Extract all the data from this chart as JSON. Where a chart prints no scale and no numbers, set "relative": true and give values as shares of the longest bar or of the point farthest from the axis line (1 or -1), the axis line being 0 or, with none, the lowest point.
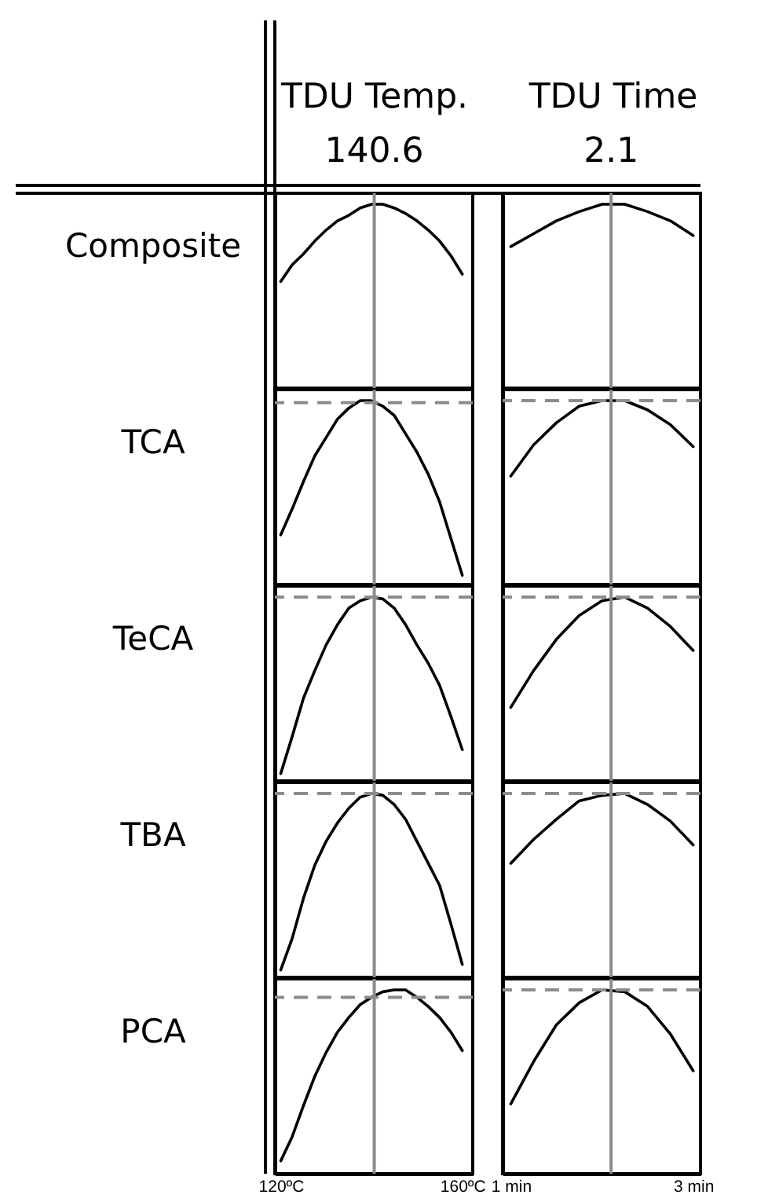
{
  "chart_data": [
    {
      "type": "line",
      "xlabel": "TDU Temp.",
      "ylabel": "Composite",
      "x": [
        120,
        122.5,
        125,
        127.5,
        130,
        132.5,
        135,
        137.5,
        140,
        142.5,
        145,
        147.5,
        150,
        152.5,
        155,
        157.5,
        160
      ],
      "values": [
        0.58,
        0.67,
        0.73,
        0.8,
        0.86,
        0.91,
        0.94,
        0.98,
        1,
        1,
        0.98,
        0.95,
        0.91,
        0.86,
        0.8,
        0.72,
        0.62
      ],
      "color": "#000000",
      "relative": true,
      "xlim": [
        118.7,
        162.3
      ],
      "tick_labels": false,
      "ref_lines": [
        {
          "axis": "x",
          "value": 140.6,
          "label": "140.6",
          "color": "#8c8c8c"
        }
      ]
    },
    {
      "type": "line",
      "xlabel": "TDU Time",
      "x": [
        1,
        1.25,
        1.5,
        1.75,
        2,
        2.25,
        2.5,
        2.75,
        3
      ],
      "values": [
        0.77,
        0.84,
        0.91,
        0.96,
        1,
        1,
        0.96,
        0.91,
        0.83
      ],
      "color": "#000000",
      "relative": true,
      "xlim": [
        0.91,
        3.08
      ],
      "tick_labels": false,
      "ref_lines": [
        {
          "axis": "x",
          "value": 2.1,
          "label": "2.1",
          "color": "#8c8c8c"
        }
      ]
    },
    {
      "type": "line",
      "ylabel": "TCA",
      "x": [
        120,
        122.5,
        125,
        127.5,
        130,
        132.5,
        135,
        137.5,
        140,
        142.5,
        145,
        147.5,
        150,
        152.5,
        155,
        157.5,
        160
      ],
      "values": [
        0.27,
        0.41,
        0.56,
        0.7,
        0.8,
        0.9,
        0.96,
        1,
        1,
        0.97,
        0.92,
        0.82,
        0.72,
        0.6,
        0.45,
        0.25,
        0.05
      ],
      "color": "#000000",
      "relative": true,
      "xlim": [
        118.7,
        162.3
      ],
      "tick_labels": false,
      "ref_lines": [
        {
          "axis": "x",
          "value": 140.6,
          "color": "#8c8c8c"
        },
        {
          "axis": "y",
          "value": 0.99,
          "line_style": "dashed",
          "color": "#8c8c8c"
        }
      ]
    },
    {
      "type": "line",
      "x": [
        1,
        1.25,
        1.5,
        1.75,
        2,
        2.25,
        2.5,
        2.75,
        3
      ],
      "values": [
        0.59,
        0.76,
        0.88,
        0.97,
        1,
        1,
        0.95,
        0.87,
        0.75
      ],
      "color": "#000000",
      "relative": true,
      "xlim": [
        0.91,
        3.08
      ],
      "tick_labels": false,
      "ref_lines": [
        {
          "axis": "x",
          "value": 2.1,
          "color": "#8c8c8c"
        },
        {
          "axis": "y",
          "value": 1,
          "line_style": "dashed",
          "color": "#8c8c8c"
        }
      ]
    },
    {
      "type": "line",
      "ylabel": "TeCA",
      "x": [
        120,
        122.5,
        125,
        127.5,
        130,
        132.5,
        135,
        137.5,
        140,
        142.5,
        145,
        147.5,
        150,
        152.5,
        155,
        157.5,
        160
      ],
      "values": [
        0.04,
        0.24,
        0.45,
        0.6,
        0.74,
        0.85,
        0.94,
        0.98,
        1,
        0.99,
        0.94,
        0.85,
        0.74,
        0.64,
        0.52,
        0.35,
        0.17
      ],
      "color": "#000000",
      "relative": true,
      "xlim": [
        118.7,
        162.3
      ],
      "tick_labels": false,
      "ref_lines": [
        {
          "axis": "x",
          "value": 140.6,
          "color": "#8c8c8c"
        },
        {
          "axis": "y",
          "value": 1,
          "line_style": "dashed",
          "color": "#8c8c8c"
        }
      ]
    },
    {
      "type": "line",
      "x": [
        1,
        1.25,
        1.5,
        1.75,
        2,
        2.25,
        2.5,
        2.75,
        3
      ],
      "values": [
        0.4,
        0.6,
        0.77,
        0.9,
        0.98,
        1,
        0.94,
        0.84,
        0.71
      ],
      "color": "#000000",
      "relative": true,
      "xlim": [
        0.91,
        3.08
      ],
      "tick_labels": false,
      "ref_lines": [
        {
          "axis": "x",
          "value": 2.1,
          "color": "#8c8c8c"
        },
        {
          "axis": "y",
          "value": 1,
          "line_style": "dashed",
          "color": "#8c8c8c"
        }
      ]
    },
    {
      "type": "line",
      "ylabel": "TBA",
      "x": [
        120,
        122.5,
        125,
        127.5,
        130,
        132.5,
        135,
        137.5,
        140,
        142.5,
        145,
        147.5,
        150,
        152.5,
        155,
        157.5,
        160
      ],
      "values": [
        0.04,
        0.21,
        0.43,
        0.61,
        0.74,
        0.84,
        0.92,
        0.98,
        1,
        0.99,
        0.94,
        0.86,
        0.74,
        0.62,
        0.5,
        0.29,
        0.07
      ],
      "color": "#000000",
      "relative": true,
      "xlim": [
        118.7,
        162.3
      ],
      "tick_labels": false,
      "ref_lines": [
        {
          "axis": "x",
          "value": 140.6,
          "color": "#8c8c8c"
        },
        {
          "axis": "y",
          "value": 1,
          "line_style": "dashed",
          "color": "#8c8c8c"
        }
      ]
    },
    {
      "type": "line",
      "x": [
        1,
        1.25,
        1.5,
        1.75,
        2,
        2.25,
        2.5,
        2.75,
        3
      ],
      "values": [
        0.62,
        0.75,
        0.86,
        0.96,
        0.99,
        1,
        0.94,
        0.85,
        0.72
      ],
      "color": "#000000",
      "relative": true,
      "xlim": [
        0.91,
        3.08
      ],
      "tick_labels": false,
      "ref_lines": [
        {
          "axis": "x",
          "value": 2.1,
          "color": "#8c8c8c"
        },
        {
          "axis": "y",
          "value": 1,
          "line_style": "dashed",
          "color": "#8c8c8c"
        }
      ]
    },
    {
      "type": "line",
      "ylabel": "PCA",
      "x": [
        120,
        122.5,
        125,
        127.5,
        130,
        132.5,
        135,
        137.5,
        140,
        142.5,
        145,
        147.5,
        150,
        152.5,
        155,
        157.5,
        160
      ],
      "values": [
        0.07,
        0.2,
        0.37,
        0.53,
        0.66,
        0.77,
        0.85,
        0.92,
        0.96,
        0.99,
        1,
        1,
        0.96,
        0.91,
        0.85,
        0.77,
        0.67
      ],
      "color": "#000000",
      "relative": true,
      "xlim": [
        118.7,
        162.3
      ],
      "xticks": [
        {
          "value": 120,
          "label": "120ºC"
        },
        {
          "value": 160,
          "label": "160ºC"
        }
      ],
      "tick_labels": "x",
      "ref_lines": [
        {
          "axis": "x",
          "value": 140.6,
          "color": "#8c8c8c"
        },
        {
          "axis": "y",
          "value": 0.96,
          "line_style": "dashed",
          "color": "#8c8c8c"
        }
      ]
    },
    {
      "type": "line",
      "x": [
        1,
        1.25,
        1.5,
        1.75,
        2,
        2.25,
        2.5,
        2.75,
        3
      ],
      "values": [
        0.38,
        0.61,
        0.81,
        0.93,
        1,
        0.99,
        0.91,
        0.76,
        0.56
      ],
      "color": "#000000",
      "relative": true,
      "xlim": [
        0.91,
        3.08
      ],
      "xticks": [
        {
          "value": 1,
          "label": "1 min"
        },
        {
          "value": 3,
          "label": "3 min"
        }
      ],
      "tick_labels": "x",
      "ref_lines": [
        {
          "axis": "x",
          "value": 2.1,
          "color": "#8c8c8c"
        },
        {
          "axis": "y",
          "value": 1,
          "line_style": "dashed",
          "color": "#8c8c8c"
        }
      ]
    }
  ]
}
